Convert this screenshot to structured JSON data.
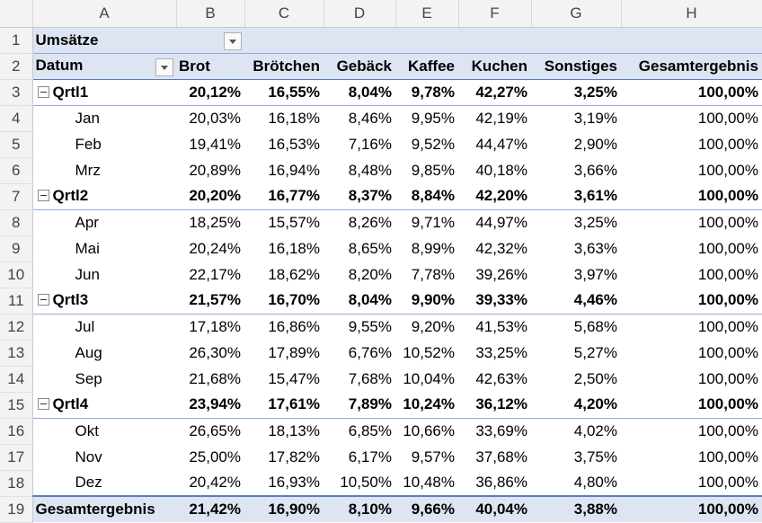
{
  "columns": [
    "A",
    "B",
    "C",
    "D",
    "E",
    "F",
    "G",
    "H"
  ],
  "pivot": {
    "title": "Umsätze",
    "row_field": "Datum",
    "headers": [
      "Brot",
      "Brötchen",
      "Gebäck",
      "Kaffee",
      "Kuchen",
      "Sonstiges",
      "Gesamtergebnis"
    ],
    "rows": [
      {
        "row": "3",
        "type": "quarter",
        "label": "Qrtl1",
        "values": [
          "20,12%",
          "16,55%",
          "8,04%",
          "9,78%",
          "42,27%",
          "3,25%",
          "100,00%"
        ]
      },
      {
        "row": "4",
        "type": "month",
        "label": "Jan",
        "values": [
          "20,03%",
          "16,18%",
          "8,46%",
          "9,95%",
          "42,19%",
          "3,19%",
          "100,00%"
        ]
      },
      {
        "row": "5",
        "type": "month",
        "label": "Feb",
        "values": [
          "19,41%",
          "16,53%",
          "7,16%",
          "9,52%",
          "44,47%",
          "2,90%",
          "100,00%"
        ]
      },
      {
        "row": "6",
        "type": "month",
        "label": "Mrz",
        "values": [
          "20,89%",
          "16,94%",
          "8,48%",
          "9,85%",
          "40,18%",
          "3,66%",
          "100,00%"
        ]
      },
      {
        "row": "7",
        "type": "quarter",
        "label": "Qrtl2",
        "values": [
          "20,20%",
          "16,77%",
          "8,37%",
          "8,84%",
          "42,20%",
          "3,61%",
          "100,00%"
        ]
      },
      {
        "row": "8",
        "type": "month",
        "label": "Apr",
        "values": [
          "18,25%",
          "15,57%",
          "8,26%",
          "9,71%",
          "44,97%",
          "3,25%",
          "100,00%"
        ]
      },
      {
        "row": "9",
        "type": "month",
        "label": "Mai",
        "values": [
          "20,24%",
          "16,18%",
          "8,65%",
          "8,99%",
          "42,32%",
          "3,63%",
          "100,00%"
        ]
      },
      {
        "row": "10",
        "type": "month",
        "label": "Jun",
        "values": [
          "22,17%",
          "18,62%",
          "8,20%",
          "7,78%",
          "39,26%",
          "3,97%",
          "100,00%"
        ]
      },
      {
        "row": "11",
        "type": "quarter",
        "label": "Qrtl3",
        "values": [
          "21,57%",
          "16,70%",
          "8,04%",
          "9,90%",
          "39,33%",
          "4,46%",
          "100,00%"
        ]
      },
      {
        "row": "12",
        "type": "month",
        "label": "Jul",
        "values": [
          "17,18%",
          "16,86%",
          "9,55%",
          "9,20%",
          "41,53%",
          "5,68%",
          "100,00%"
        ]
      },
      {
        "row": "13",
        "type": "month",
        "label": "Aug",
        "values": [
          "26,30%",
          "17,89%",
          "6,76%",
          "10,52%",
          "33,25%",
          "5,27%",
          "100,00%"
        ]
      },
      {
        "row": "14",
        "type": "month",
        "label": "Sep",
        "values": [
          "21,68%",
          "15,47%",
          "7,68%",
          "10,04%",
          "42,63%",
          "2,50%",
          "100,00%"
        ]
      },
      {
        "row": "15",
        "type": "quarter",
        "label": "Qrtl4",
        "values": [
          "23,94%",
          "17,61%",
          "7,89%",
          "10,24%",
          "36,12%",
          "4,20%",
          "100,00%"
        ]
      },
      {
        "row": "16",
        "type": "month",
        "label": "Okt",
        "values": [
          "26,65%",
          "18,13%",
          "6,85%",
          "10,66%",
          "33,69%",
          "4,02%",
          "100,00%"
        ]
      },
      {
        "row": "17",
        "type": "month",
        "label": "Nov",
        "values": [
          "25,00%",
          "17,82%",
          "6,17%",
          "9,57%",
          "37,68%",
          "3,75%",
          "100,00%"
        ]
      },
      {
        "row": "18",
        "type": "month",
        "label": "Dez",
        "values": [
          "20,42%",
          "16,93%",
          "10,50%",
          "10,48%",
          "36,86%",
          "4,80%",
          "100,00%"
        ]
      }
    ],
    "grand_total": {
      "row": "19",
      "label": "Gesamtergebnis",
      "values": [
        "21,42%",
        "16,90%",
        "8,10%",
        "9,66%",
        "40,04%",
        "3,88%",
        "100,00%"
      ]
    }
  },
  "colors": {
    "header_fill": "#dde4f2",
    "border_blue": "#8ea9db",
    "grid_header": "#f3f3f3"
  }
}
